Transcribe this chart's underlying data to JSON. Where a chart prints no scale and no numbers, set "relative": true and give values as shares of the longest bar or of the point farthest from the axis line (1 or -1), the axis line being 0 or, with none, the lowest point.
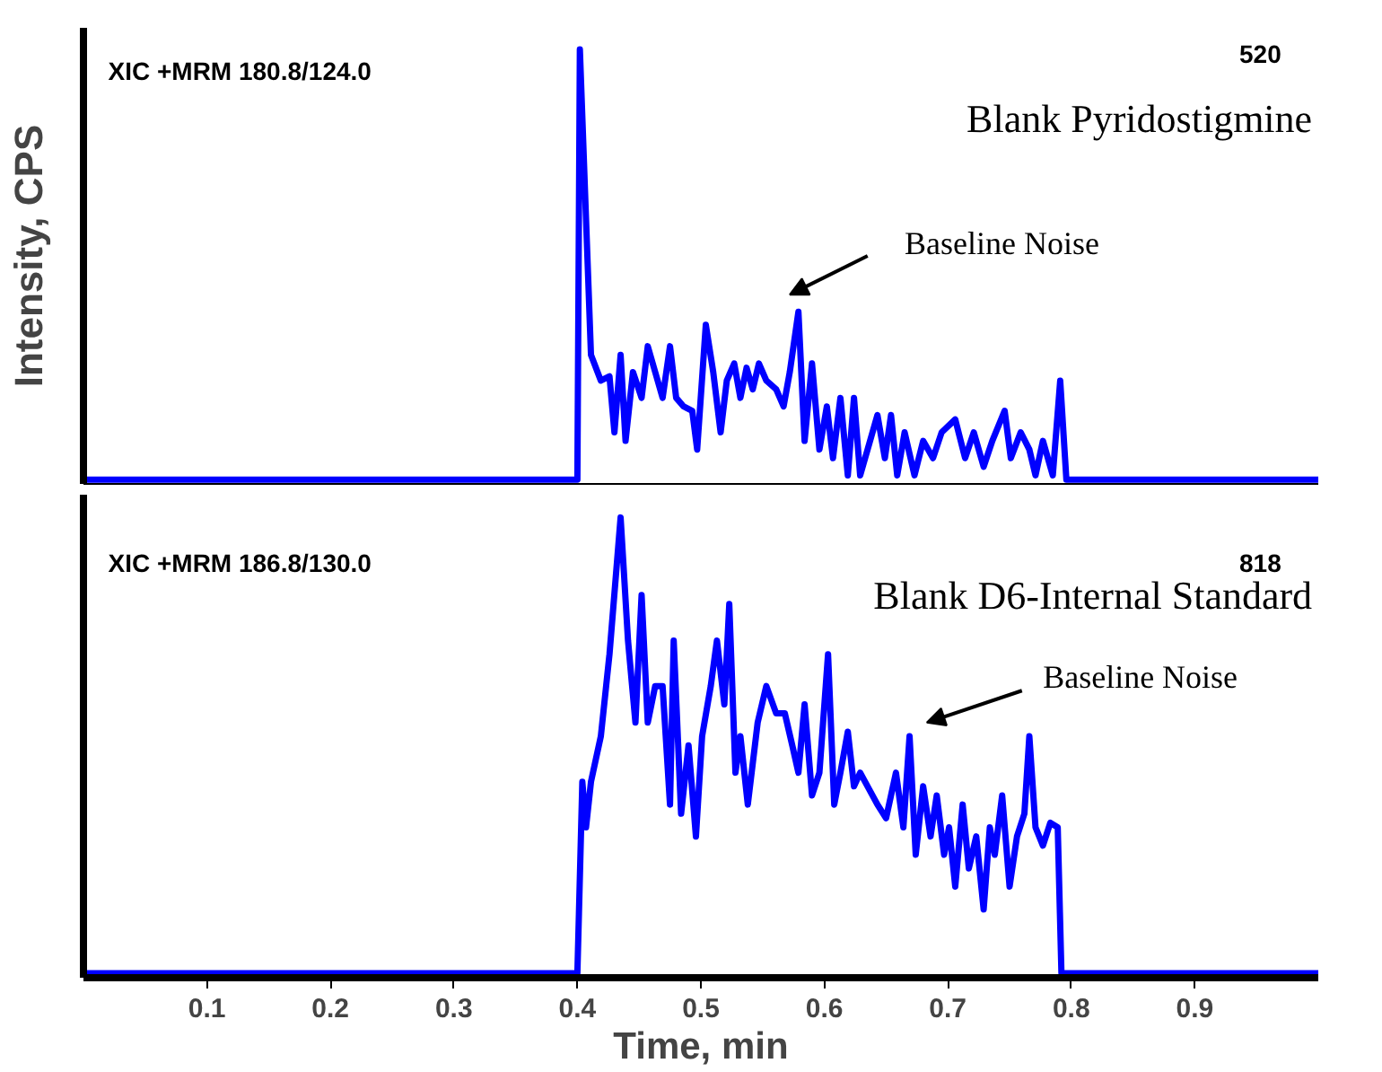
{
  "chart_data": [
    {
      "type": "line",
      "title": "Blank Pyridostigmine",
      "ylabel": "Intensity, CPS",
      "relative": true,
      "xlim": [
        0,
        1.0
      ],
      "xticks": [
        0.1,
        0.2,
        0.3,
        0.4,
        0.5,
        0.6,
        0.7,
        0.8,
        0.9
      ],
      "tick_labels": false,
      "line_style": "solid",
      "annotations": [
        "XIC +MRM 180.8/124.0",
        "520",
        "Baseline Noise"
      ],
      "series": [
        {
          "color": "#0000ff",
          "x": [
            0,
            0.4,
            0.402,
            0.411,
            0.419,
            0.426,
            0.43,
            0.435,
            0.439,
            0.445,
            0.452,
            0.457,
            0.463,
            0.469,
            0.475,
            0.48,
            0.486,
            0.493,
            0.497,
            0.504,
            0.51,
            0.516,
            0.521,
            0.527,
            0.532,
            0.537,
            0.542,
            0.547,
            0.553,
            0.561,
            0.567,
            0.572,
            0.579,
            0.584,
            0.59,
            0.596,
            0.602,
            0.607,
            0.613,
            0.619,
            0.624,
            0.629,
            0.635,
            0.643,
            0.649,
            0.654,
            0.659,
            0.665,
            0.673,
            0.68,
            0.688,
            0.695,
            0.706,
            0.714,
            0.721,
            0.729,
            0.736,
            0.746,
            0.751,
            0.759,
            0.766,
            0.771,
            0.777,
            0.785,
            0.791,
            0.796,
            1.0
          ],
          "values": [
            0,
            0,
            1,
            0.29,
            0.23,
            0.24,
            0.11,
            0.29,
            0.09,
            0.25,
            0.19,
            0.31,
            0.25,
            0.19,
            0.31,
            0.19,
            0.17,
            0.16,
            0.07,
            0.36,
            0.25,
            0.11,
            0.23,
            0.27,
            0.19,
            0.26,
            0.21,
            0.27,
            0.23,
            0.21,
            0.17,
            0.25,
            0.39,
            0.09,
            0.27,
            0.07,
            0.17,
            0.05,
            0.19,
            0.01,
            0.19,
            0.01,
            0.07,
            0.15,
            0.05,
            0.15,
            0.01,
            0.11,
            0.01,
            0.09,
            0.05,
            0.11,
            0.14,
            0.05,
            0.11,
            0.03,
            0.09,
            0.16,
            0.05,
            0.11,
            0.07,
            0.01,
            0.09,
            0.01,
            0.23,
            0,
            0
          ]
        }
      ]
    },
    {
      "type": "line",
      "title": "Blank D6-Internal Standard",
      "xlabel": "Time, min",
      "relative": true,
      "xlim": [
        0,
        1.0
      ],
      "xticks": [
        0.1,
        0.2,
        0.3,
        0.4,
        0.5,
        0.6,
        0.7,
        0.8,
        0.9
      ],
      "tick_labels": "x",
      "line_style": "solid",
      "annotations": [
        "XIC +MRM 186.8/130.0",
        "818",
        "Baseline Noise"
      ],
      "series": [
        {
          "color": "#0000ff",
          "x": [
            0,
            0.4,
            0.404,
            0.407,
            0.411,
            0.419,
            0.426,
            0.435,
            0.441,
            0.447,
            0.452,
            0.457,
            0.463,
            0.469,
            0.475,
            0.478,
            0.484,
            0.49,
            0.496,
            0.501,
            0.508,
            0.513,
            0.519,
            0.523,
            0.528,
            0.532,
            0.538,
            0.546,
            0.553,
            0.561,
            0.568,
            0.574,
            0.579,
            0.584,
            0.59,
            0.596,
            0.603,
            0.608,
            0.613,
            0.619,
            0.624,
            0.629,
            0.635,
            0.643,
            0.65,
            0.658,
            0.664,
            0.669,
            0.674,
            0.68,
            0.686,
            0.691,
            0.697,
            0.701,
            0.706,
            0.712,
            0.717,
            0.723,
            0.729,
            0.734,
            0.738,
            0.744,
            0.75,
            0.756,
            0.762,
            0.766,
            0.771,
            0.777,
            0.783,
            0.789,
            0.792,
            1.0
          ],
          "values": [
            0,
            0,
            0.42,
            0.32,
            0.42,
            0.52,
            0.7,
            1,
            0.73,
            0.55,
            0.83,
            0.55,
            0.63,
            0.63,
            0.37,
            0.73,
            0.35,
            0.5,
            0.3,
            0.52,
            0.63,
            0.73,
            0.59,
            0.81,
            0.44,
            0.52,
            0.37,
            0.55,
            0.63,
            0.57,
            0.57,
            0.5,
            0.44,
            0.59,
            0.39,
            0.44,
            0.7,
            0.37,
            0.44,
            0.53,
            0.41,
            0.44,
            0.41,
            0.37,
            0.34,
            0.44,
            0.32,
            0.52,
            0.26,
            0.41,
            0.3,
            0.39,
            0.26,
            0.32,
            0.19,
            0.37,
            0.23,
            0.3,
            0.14,
            0.32,
            0.26,
            0.39,
            0.19,
            0.3,
            0.35,
            0.52,
            0.32,
            0.28,
            0.33,
            0.32,
            0,
            0
          ]
        }
      ]
    }
  ]
}
